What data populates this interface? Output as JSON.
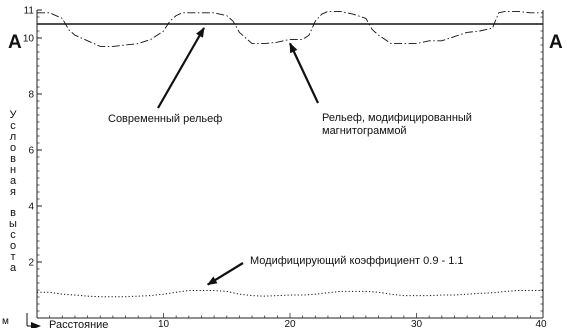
{
  "section_marker_left": "A",
  "section_marker_right": "A",
  "chart_data": {
    "type": "line",
    "xlabel": "Расстояние",
    "xunit": "м",
    "ylabel": "Условная высота",
    "xlim": [
      0,
      40
    ],
    "ylim": [
      0,
      11
    ],
    "xticks": [
      10,
      20,
      30,
      40
    ],
    "yticks": [
      2,
      4,
      6,
      8,
      10,
      11
    ],
    "grid": false,
    "series": [
      {
        "name": "Современный рельеф",
        "style": "solid",
        "x": [
          0,
          40
        ],
        "y": [
          10.5,
          10.5
        ]
      },
      {
        "name": "Рельеф, модифицированный магнитограммой",
        "style": "dash-dot",
        "x": [
          0,
          1,
          2,
          2.5,
          3,
          4,
          5,
          6,
          7,
          8,
          9,
          9.5,
          10,
          10.5,
          11,
          11.5,
          12,
          13,
          14,
          15,
          15.5,
          16,
          16.5,
          17,
          18,
          19,
          20,
          21,
          21.5,
          22,
          22.5,
          23,
          23.5,
          24,
          25,
          26,
          26.5,
          27,
          27.5,
          28,
          29,
          30,
          31,
          32,
          33,
          34,
          35,
          35.5,
          36,
          36.5,
          37,
          38,
          39,
          40
        ],
        "y": [
          10.9,
          10.9,
          10.7,
          10.3,
          10.1,
          9.9,
          9.7,
          9.7,
          9.75,
          9.8,
          9.95,
          10.1,
          10.25,
          10.6,
          10.8,
          10.9,
          10.9,
          10.9,
          10.9,
          10.8,
          10.6,
          10.2,
          10.0,
          9.8,
          9.8,
          9.85,
          9.95,
          9.95,
          10.1,
          10.6,
          10.85,
          10.95,
          10.95,
          10.95,
          10.85,
          10.7,
          10.3,
          10.1,
          9.95,
          9.8,
          9.8,
          9.8,
          9.9,
          9.9,
          10.05,
          10.2,
          10.25,
          10.3,
          10.35,
          10.9,
          10.95,
          10.95,
          10.9,
          10.9
        ]
      },
      {
        "name": "Модифицирующий коэффициент  0.9 - 1.1",
        "style": "dotted",
        "x": [
          0,
          1,
          2,
          3,
          4,
          5,
          6,
          7,
          8,
          9,
          10,
          11,
          12,
          13,
          14,
          15,
          16,
          17,
          18,
          19,
          20,
          21,
          22,
          23,
          24,
          25,
          26,
          27,
          28,
          29,
          30,
          31,
          32,
          33,
          34,
          35,
          36,
          37,
          38,
          39,
          40
        ],
        "y": [
          0.92,
          0.92,
          0.85,
          0.82,
          0.78,
          0.76,
          0.76,
          0.76,
          0.78,
          0.8,
          0.85,
          0.92,
          0.98,
          0.98,
          0.98,
          0.95,
          0.85,
          0.8,
          0.78,
          0.8,
          0.82,
          0.82,
          0.85,
          0.9,
          0.95,
          0.95,
          0.95,
          0.92,
          0.85,
          0.8,
          0.8,
          0.8,
          0.82,
          0.82,
          0.85,
          0.88,
          0.9,
          0.95,
          0.98,
          0.98,
          0.98
        ]
      }
    ],
    "annotations": [
      {
        "text": "Современный рельеф",
        "series": 0,
        "at_x": 13.2
      },
      {
        "text": "Рельеф, модифицированный",
        "text2": "магнитограммой",
        "series": 1,
        "at_x": 20
      },
      {
        "text": "Модифицирующий коэффициент  0.9 - 1.1",
        "series": 2,
        "at_x": 13.5
      }
    ]
  }
}
